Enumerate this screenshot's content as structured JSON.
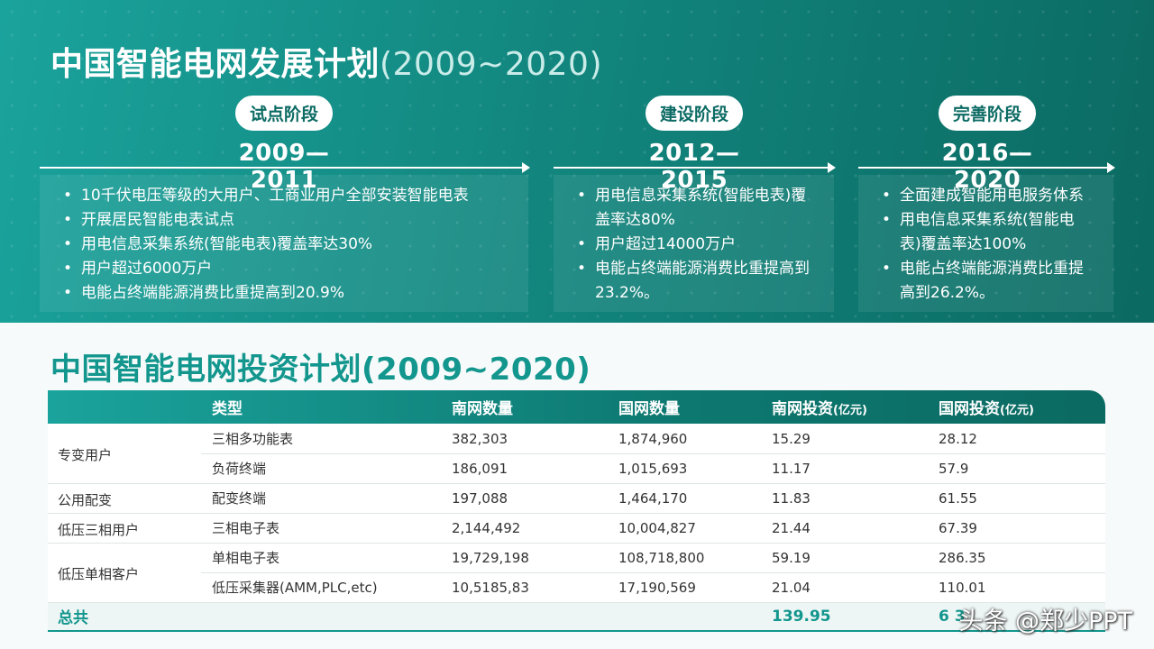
{
  "header": {
    "title_main": "中国智能电网发展计划",
    "title_year": "(2009~2020)"
  },
  "phases": [
    {
      "badge": "试点阶段",
      "years": "2009—2011",
      "items": [
        "10千伏电压等级的大用户、工商业用户全部安装智能电表",
        "开展居民智能电表试点",
        "用电信息采集系统(智能电表)覆盖率达30%",
        "用户超过6000万户",
        "电能占终端能源消费比重提高到20.9%"
      ]
    },
    {
      "badge": "建设阶段",
      "years": "2012—2015",
      "items": [
        "用电信息采集系统(智能电表)覆盖率达80%",
        "用户超过14000万户",
        "电能占终端能源消费比重提高到23.2%。"
      ]
    },
    {
      "badge": "完善阶段",
      "years": "2016—2020",
      "items": [
        "全面建成智能用电服务体系",
        "用电信息采集系统(智能电表)覆盖率达100%",
        "电能占终端能源消费比重提高到26.2%。"
      ]
    }
  ],
  "invest": {
    "title": "中国智能电网投资计划(2009~2020)",
    "headers": [
      "类型",
      "南网数量",
      "国网数量",
      "南网投资",
      "(亿元)",
      "国网投资",
      "(亿元)"
    ],
    "categories": [
      "专变用户",
      "公用配变",
      "低压三相用户",
      "低压单相客户"
    ],
    "rows": [
      [
        "三相多功能表",
        "382,303",
        "1,874,960",
        "15.29",
        "28.12"
      ],
      [
        "负荷终端",
        "186,091",
        "1,015,693",
        "11.17",
        "57.9"
      ],
      [
        "配变终端",
        "197,088",
        "1,464,170",
        "11.83",
        "61.55"
      ],
      [
        "三相电子表",
        "2,144,492",
        "10,004,827",
        "21.44",
        "67.39"
      ],
      [
        "单相电子表",
        "19,729,198",
        "108,718,800",
        "59.19",
        "286.35"
      ],
      [
        "低压采集器(AMM,PLC,etc)",
        "10,5185,83",
        "17,190,569",
        "21.04",
        "110.01"
      ]
    ],
    "total_label": "总共",
    "total_south": "139.95",
    "total_state_partial": "6 3"
  },
  "watermark": "头条 @郑少PPT",
  "colors": {
    "accent": "#12968d",
    "band_start": "#1aa39c",
    "band_end": "#0b6a62"
  }
}
